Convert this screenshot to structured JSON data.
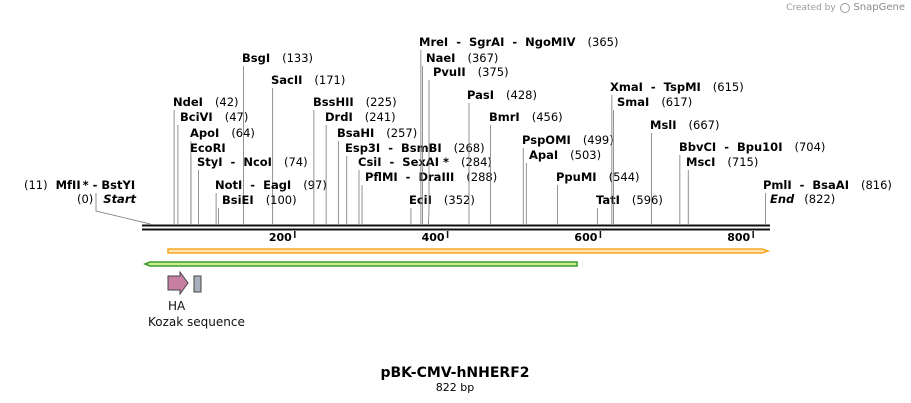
{
  "credit": {
    "prefix": "Created by",
    "brand": "SnapGene"
  },
  "plasmid": {
    "name": "pBK-CMV-hNHERF2",
    "length_label": "822 bp",
    "length": 822
  },
  "start_label": {
    "pos": "(0)",
    "text": "Start"
  },
  "end_label": {
    "text": "End",
    "pos": "(822)"
  },
  "ruler": [
    {
      "value": 200,
      "label": "200"
    },
    {
      "value": 400,
      "label": "400"
    },
    {
      "value": 600,
      "label": "600"
    },
    {
      "value": 800,
      "label": "800"
    }
  ],
  "sites": [
    {
      "name": "BsgI",
      "pos": "(133)",
      "bp": 133
    },
    {
      "name": "SacII",
      "pos": "(171)",
      "bp": 171
    },
    {
      "name": "NdeI",
      "pos": "(42)",
      "bp": 42
    },
    {
      "name": "BciVI",
      "pos": "(47)",
      "bp": 47
    },
    {
      "name": "ApoI",
      "pos": "(64)",
      "bp": 64
    },
    {
      "name": "EcoRI",
      "pos": "",
      "bp": 64
    },
    {
      "name": "StyI  -  NcoI",
      "pos": "(74)",
      "bp": 74
    },
    {
      "name": "NotI  -  EagI",
      "pos": "(97)",
      "bp": 97
    },
    {
      "name": "BsiEI",
      "pos": "(100)",
      "bp": 100
    },
    {
      "name": "MfII",
      "mark": "*",
      "name2": "BstYI",
      "pos": "(11)",
      "bp": 11,
      "left": true
    },
    {
      "name": "BssHII",
      "pos": "(225)",
      "bp": 225
    },
    {
      "name": "DrdI",
      "pos": "(241)",
      "bp": 241
    },
    {
      "name": "BsaHI",
      "pos": "(257)",
      "bp": 257
    },
    {
      "name": "Esp3I  -  BsmBI",
      "pos": "(268)",
      "bp": 268
    },
    {
      "name": "CsiI  -  SexAI",
      "mark": "*",
      "pos": "(284)",
      "bp": 284
    },
    {
      "name": "PflMI  -  DraIII",
      "pos": "(288)",
      "bp": 288
    },
    {
      "name": "EciI",
      "pos": "(352)",
      "bp": 352
    },
    {
      "name": "MreI  -  SgrAI  -  NgoMIV",
      "pos": "(365)",
      "bp": 365
    },
    {
      "name": "NaeI",
      "pos": "(367)",
      "bp": 367
    },
    {
      "name": "PvuII",
      "pos": "(375)",
      "bp": 375
    },
    {
      "name": "PasI",
      "pos": "(428)",
      "bp": 428
    },
    {
      "name": "BmrI",
      "pos": "(456)",
      "bp": 456
    },
    {
      "name": "PspOMI",
      "pos": "(499)",
      "bp": 499
    },
    {
      "name": "ApaI",
      "pos": "(503)",
      "bp": 503
    },
    {
      "name": "PpuMI",
      "pos": "(544)",
      "bp": 544
    },
    {
      "name": "TatI",
      "pos": "(596)",
      "bp": 596
    },
    {
      "name": "XmaI  -  TspMI",
      "pos": "(615)",
      "bp": 615
    },
    {
      "name": "SmaI",
      "pos": "(617)",
      "bp": 617
    },
    {
      "name": "MslI",
      "pos": "(667)",
      "bp": 667
    },
    {
      "name": "BbvCI  -  Bpu10I",
      "pos": "(704)",
      "bp": 704
    },
    {
      "name": "MscI",
      "pos": "(715)",
      "bp": 715
    },
    {
      "name": "PmlI  -  BsaAI",
      "pos": "(816)",
      "bp": 816
    }
  ],
  "features": [
    {
      "name": "HA",
      "type": "tag",
      "color": "#c97fa3"
    },
    {
      "name": "Kozak sequence",
      "type": "regulatory",
      "color": "#a9b0bd"
    }
  ],
  "colors": {
    "orange_track": "#f5a623",
    "orange_fill": "#fbe3b3",
    "green_track": "#3f9b26",
    "green_fill": "#c4ed9a",
    "backbone": "#111111"
  }
}
